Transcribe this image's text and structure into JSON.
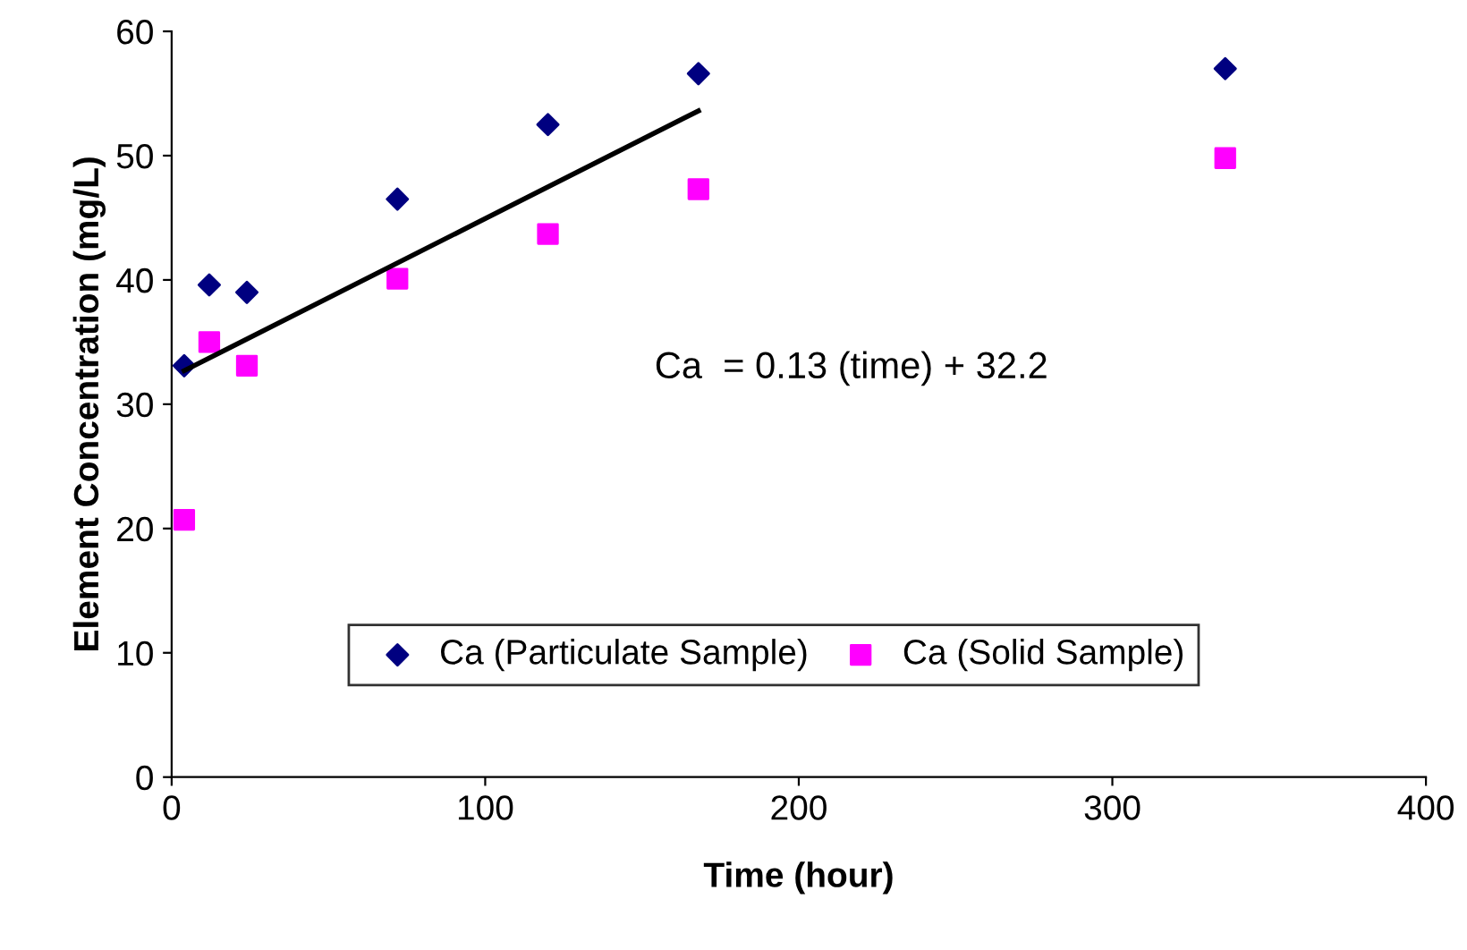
{
  "chart_data": {
    "type": "scatter",
    "xlabel": "Time (hour)",
    "ylabel": "Element Concentration (mg/L)",
    "xlim": [
      0,
      400
    ],
    "xticks": [
      0,
      100,
      200,
      300,
      400
    ],
    "ylim": [
      0,
      60
    ],
    "yticks": [
      0,
      10,
      20,
      30,
      40,
      50,
      60
    ],
    "grid": false,
    "legend": "bottom",
    "annotations": [
      "Ca  = 0.13 (time) + 32.2"
    ],
    "series": [
      {
        "name": "Ca (Particulate Sample)",
        "color": "#000080",
        "marker": "diamond",
        "x": [
          4,
          12,
          24,
          72,
          120,
          168,
          336
        ],
        "values": [
          33.1,
          39.6,
          39.0,
          46.5,
          52.5,
          56.6,
          57.0
        ]
      },
      {
        "name": "Ca (Solid Sample)",
        "color": "#ff00ff",
        "marker": "square",
        "x": [
          4,
          12,
          24,
          72,
          120,
          168,
          336
        ],
        "values": [
          20.7,
          35.0,
          33.1,
          40.1,
          43.7,
          47.3,
          49.8
        ]
      },
      {
        "type": "line",
        "color": "#000000",
        "x": [
          4,
          168
        ],
        "values": [
          32.7,
          53.6
        ]
      }
    ]
  }
}
